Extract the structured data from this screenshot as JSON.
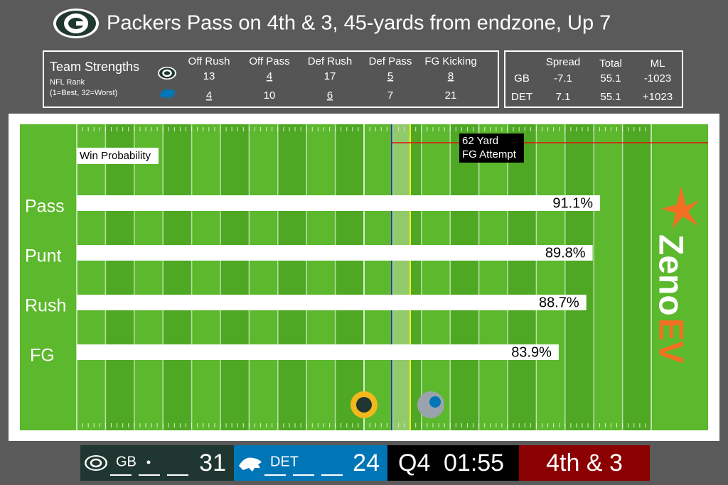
{
  "title": "Packers Pass on 4th & 3, 45-yards from endzone, Up 7",
  "team_strengths": {
    "title": "Team Strengths",
    "subtitle": "NFL Rank",
    "note": "(1=Best, 32=Worst)",
    "columns": [
      "Off Rush",
      "Off Pass",
      "Def Rush",
      "Def Pass",
      "FG Kicking"
    ],
    "rows": [
      [
        13,
        4,
        17,
        5,
        8
      ],
      [
        4,
        10,
        6,
        7,
        21
      ]
    ],
    "underlined": [
      [
        false,
        true,
        false,
        true,
        true
      ],
      [
        true,
        false,
        true,
        false,
        false
      ]
    ]
  },
  "betting": {
    "columns": [
      "Spread",
      "Total",
      "ML"
    ],
    "rows": [
      {
        "team": "GB",
        "values": [
          "-7.1",
          "55.1",
          "-1023"
        ]
      },
      {
        "team": "DET",
        "values": [
          "7.1",
          "55.1",
          "+1023"
        ]
      }
    ]
  },
  "scoreboard": {
    "home": "GB",
    "home_score": 31,
    "away": "DET",
    "away_score": 24,
    "quarter": "Q4",
    "clock": "01:55",
    "down": "4th & 3"
  },
  "brand": [
    "Zeno",
    "EV"
  ],
  "chart_data": {
    "type": "bar",
    "orientation": "horizontal",
    "label": "Win Probability",
    "annotation": [
      "62 Yard",
      "FG Attempt"
    ],
    "categories": [
      "Pass",
      "Punt",
      "Rush",
      "FG"
    ],
    "values": [
      91.1,
      89.8,
      88.7,
      83.9
    ],
    "value_labels": [
      "91.1%",
      "89.8%",
      "88.7%",
      "83.9%"
    ],
    "color": "#ffffff",
    "xlim": [
      0,
      100
    ]
  }
}
